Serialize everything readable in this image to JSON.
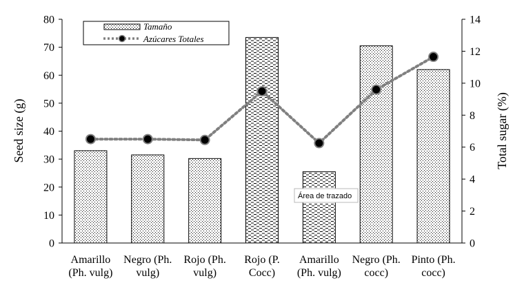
{
  "chart_data": {
    "type": "bar",
    "categories": [
      [
        "Amarillo",
        "(Ph. vulg)"
      ],
      [
        "Negro (Ph.",
        "vulg)"
      ],
      [
        "Rojo (Ph.",
        "vulg)"
      ],
      [
        "Rojo (P.",
        "Cocc)"
      ],
      [
        "Amarillo",
        "(Ph. vulg)"
      ],
      [
        "Negro (Ph.",
        "cocc)"
      ],
      [
        "Pinto (Ph.",
        "cocc)"
      ]
    ],
    "series": [
      {
        "name": "Tamaño",
        "type": "bar",
        "axis": "left",
        "values": [
          33,
          31.5,
          30.2,
          73.5,
          25.5,
          70.5,
          62
        ]
      },
      {
        "name": "Azúcares Totales",
        "type": "line",
        "axis": "right",
        "values": [
          6.5,
          6.5,
          6.45,
          9.5,
          6.25,
          9.6,
          11.65
        ]
      }
    ],
    "ylabel": "Seed size (g)",
    "ylabel_right": "Total sugar (%)",
    "ylim": [
      0,
      80
    ],
    "ylim_right": [
      0,
      14
    ],
    "yticks": [
      "0",
      "10",
      "20",
      "30",
      "40",
      "50",
      "60",
      "70",
      "80"
    ],
    "yticks_right": [
      "0",
      "2",
      "4",
      "6",
      "8",
      "10",
      "12",
      "14"
    ],
    "grid": false,
    "legend_position": "top-left",
    "bar_patterns": [
      "dots",
      "dots",
      "dots",
      "dashes",
      "dashes",
      "dots",
      "dots"
    ],
    "colors": {
      "line": "#808080",
      "marker": "#000000",
      "bar_edge": "#000000"
    }
  },
  "tooltip": {
    "text": "Área de trazado"
  }
}
